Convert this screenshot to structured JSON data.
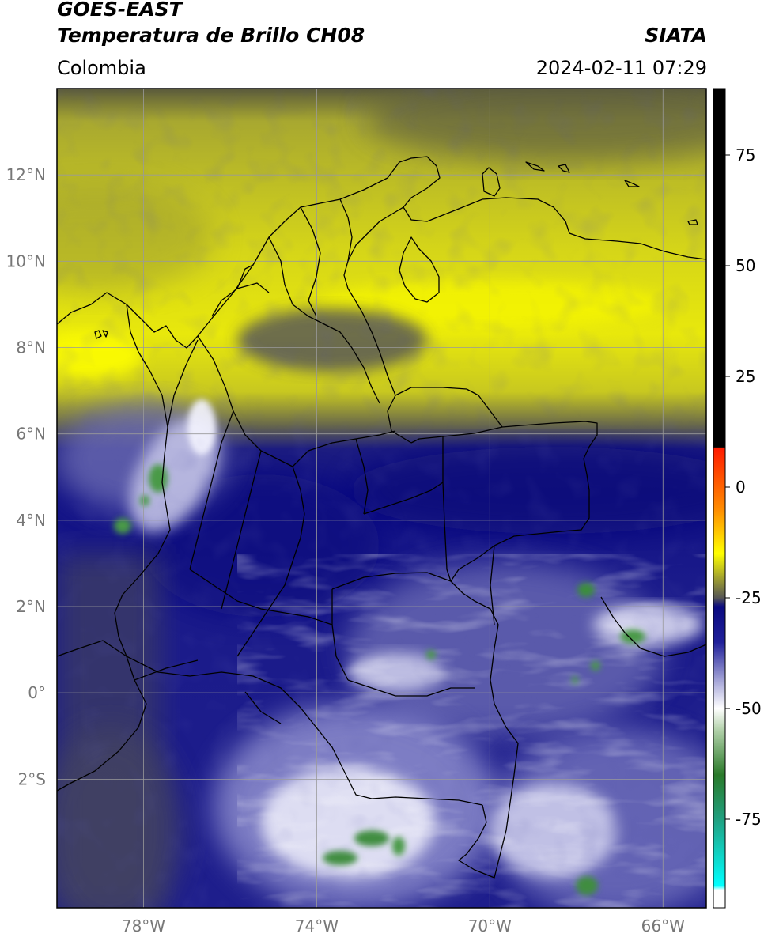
{
  "header": {
    "satellite": "GOES-EAST",
    "product": "Temperatura de Brillo CH08",
    "agency": "SIATA",
    "region": "Colombia",
    "timestamp": "2024-02-11 07:29"
  },
  "map": {
    "lat_ticks": [
      {
        "value": 12,
        "label": "12°N"
      },
      {
        "value": 10,
        "label": "10°N"
      },
      {
        "value": 8,
        "label": "8°N"
      },
      {
        "value": 6,
        "label": "6°N"
      },
      {
        "value": 4,
        "label": "4°N"
      },
      {
        "value": 2,
        "label": "2°N"
      },
      {
        "value": 0,
        "label": "0°"
      },
      {
        "value": -2,
        "label": "2°S"
      }
    ],
    "lon_ticks": [
      {
        "value": -78,
        "label": "78°W"
      },
      {
        "value": -74,
        "label": "74°W"
      },
      {
        "value": -70,
        "label": "70°W"
      },
      {
        "value": -66,
        "label": "66°W"
      }
    ],
    "lat_range": [
      -4.98,
      14.0
    ],
    "lon_range": [
      -80.0,
      -65.0
    ],
    "gridlines": true
  },
  "colorbar": {
    "range": [
      -95,
      90
    ],
    "ticks": [
      75,
      50,
      25,
      0,
      -25,
      -50,
      -75
    ],
    "tick_labels": [
      "75",
      "50",
      "25",
      "0",
      "-25",
      "-50",
      "-75"
    ],
    "stops": [
      {
        "value": 90,
        "color": "#000000"
      },
      {
        "value": 9,
        "color": "#000000"
      },
      {
        "value": 8.9,
        "color": "#ff1a00"
      },
      {
        "value": -5,
        "color": "#ff8c00"
      },
      {
        "value": -15,
        "color": "#ffff00"
      },
      {
        "value": -25,
        "color": "#555555"
      },
      {
        "value": -27,
        "color": "#0a0a80"
      },
      {
        "value": -35,
        "color": "#20209a"
      },
      {
        "value": -45,
        "color": "#b8b8e0"
      },
      {
        "value": -50,
        "color": "#ffffff"
      },
      {
        "value": -55,
        "color": "#b0d0a8"
      },
      {
        "value": -65,
        "color": "#2a7a2a"
      },
      {
        "value": -75,
        "color": "#20a080"
      },
      {
        "value": -90,
        "color": "#00ffff"
      },
      {
        "value": -91,
        "color": "#ffffff"
      },
      {
        "value": -95,
        "color": "#ffffff"
      }
    ]
  }
}
